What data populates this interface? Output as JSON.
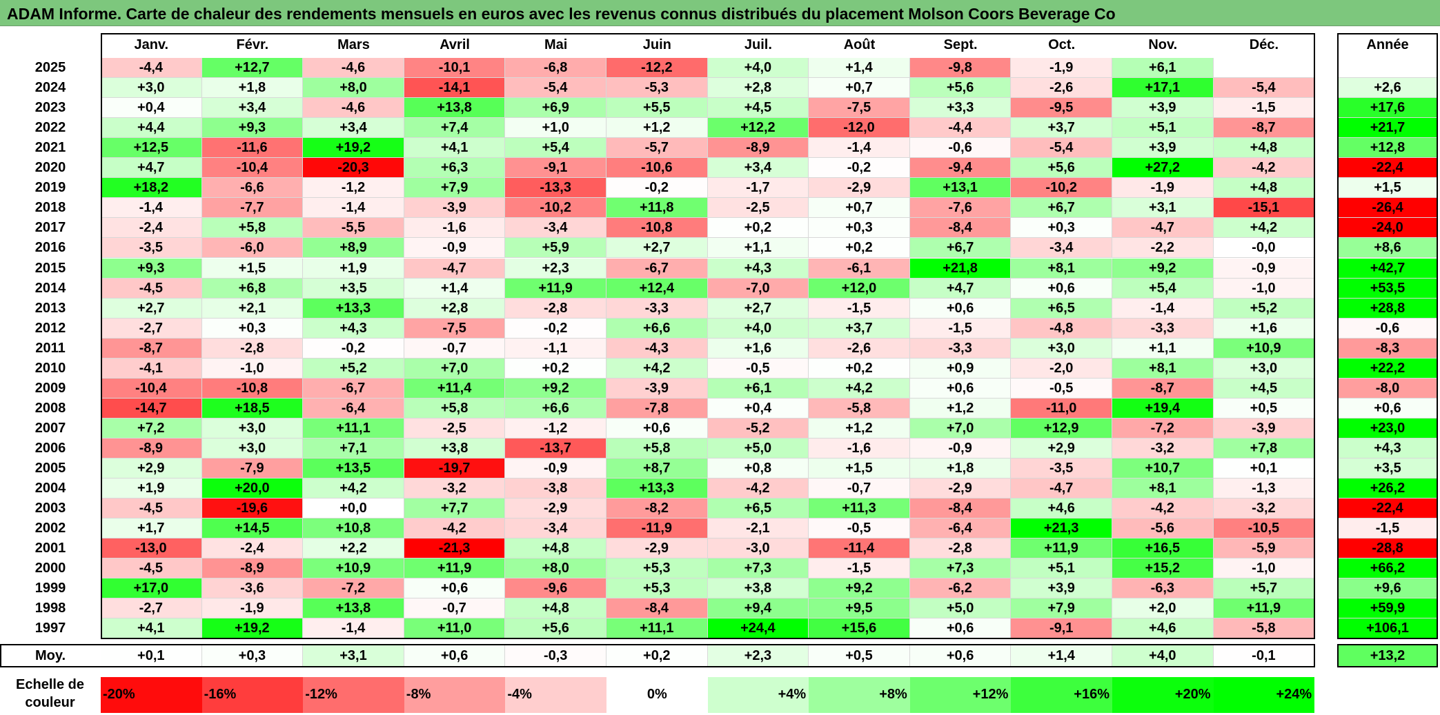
{
  "title": "ADAM Informe. Carte de chaleur des rendements mensuels en euros avec les revenus connus distribués du placement Molson Coors Beverage Co",
  "colors": {
    "title_bg": "#7dc77d",
    "negative_max": "#ff0000",
    "positive_max": "#00ff00",
    "neutral": "#ffffff"
  },
  "chart_data": {
    "type": "heatmap",
    "title": "ADAM Informe. Carte de chaleur des rendements mensuels en euros avec les revenus connus distribués du placement Molson Coors Beverage Co",
    "columns": [
      "Janv.",
      "Févr.",
      "Mars",
      "Avril",
      "Mai",
      "Juin",
      "Juil.",
      "Août",
      "Sept.",
      "Oct.",
      "Nov.",
      "Déc."
    ],
    "year_column_label": "Année",
    "rows": [
      {
        "label": "2025",
        "values": [
          "-4,4",
          "+12,7",
          "-4,6",
          "-10,1",
          "-6,8",
          "-12,2",
          "+4,0",
          "+1,4",
          "-9,8",
          "-1,9",
          "+6,1",
          ""
        ],
        "year": ""
      },
      {
        "label": "2024",
        "values": [
          "+3,0",
          "+1,8",
          "+8,0",
          "-14,1",
          "-5,4",
          "-5,3",
          "+2,8",
          "+0,7",
          "+5,6",
          "-2,6",
          "+17,1",
          "-5,4"
        ],
        "year": "+2,6"
      },
      {
        "label": "2023",
        "values": [
          "+0,4",
          "+3,4",
          "-4,6",
          "+13,8",
          "+6,9",
          "+5,5",
          "+4,5",
          "-7,5",
          "+3,3",
          "-9,5",
          "+3,9",
          "-1,5"
        ],
        "year": "+17,6"
      },
      {
        "label": "2022",
        "values": [
          "+4,4",
          "+9,3",
          "+3,4",
          "+7,4",
          "+1,0",
          "+1,2",
          "+12,2",
          "-12,0",
          "-4,4",
          "+3,7",
          "+5,1",
          "-8,7"
        ],
        "year": "+21,7"
      },
      {
        "label": "2021",
        "values": [
          "+12,5",
          "-11,6",
          "+19,2",
          "+4,1",
          "+5,4",
          "-5,7",
          "-8,9",
          "-1,4",
          "-0,6",
          "-5,4",
          "+3,9",
          "+4,8"
        ],
        "year": "+12,8"
      },
      {
        "label": "2020",
        "values": [
          "+4,7",
          "-10,4",
          "-20,3",
          "+6,3",
          "-9,1",
          "-10,6",
          "+3,4",
          "-0,2",
          "-9,4",
          "+5,6",
          "+27,2",
          "-4,2"
        ],
        "year": "-22,4"
      },
      {
        "label": "2019",
        "values": [
          "+18,2",
          "-6,6",
          "-1,2",
          "+7,9",
          "-13,3",
          "-0,2",
          "-1,7",
          "-2,9",
          "+13,1",
          "-10,2",
          "-1,9",
          "+4,8"
        ],
        "year": "+1,5"
      },
      {
        "label": "2018",
        "values": [
          "-1,4",
          "-7,7",
          "-1,4",
          "-3,9",
          "-10,2",
          "+11,8",
          "-2,5",
          "+0,7",
          "-7,6",
          "+6,7",
          "+3,1",
          "-15,1"
        ],
        "year": "-26,4"
      },
      {
        "label": "2017",
        "values": [
          "-2,4",
          "+5,8",
          "-5,5",
          "-1,6",
          "-3,4",
          "-10,8",
          "+0,2",
          "+0,3",
          "-8,4",
          "+0,3",
          "-4,7",
          "+4,2"
        ],
        "year": "-24,0"
      },
      {
        "label": "2016",
        "values": [
          "-3,5",
          "-6,0",
          "+8,9",
          "-0,9",
          "+5,9",
          "+2,7",
          "+1,1",
          "+0,2",
          "+6,7",
          "-3,4",
          "-2,2",
          "-0,0"
        ],
        "year": "+8,6"
      },
      {
        "label": "2015",
        "values": [
          "+9,3",
          "+1,5",
          "+1,9",
          "-4,7",
          "+2,3",
          "-6,7",
          "+4,3",
          "-6,1",
          "+21,8",
          "+8,1",
          "+9,2",
          "-0,9"
        ],
        "year": "+42,7"
      },
      {
        "label": "2014",
        "values": [
          "-4,5",
          "+6,8",
          "+3,5",
          "+1,4",
          "+11,9",
          "+12,4",
          "-7,0",
          "+12,0",
          "+4,7",
          "+0,6",
          "+5,4",
          "-1,0"
        ],
        "year": "+53,5"
      },
      {
        "label": "2013",
        "values": [
          "+2,7",
          "+2,1",
          "+13,3",
          "+2,8",
          "-2,8",
          "-3,3",
          "+2,7",
          "-1,5",
          "+0,6",
          "+6,5",
          "-1,4",
          "+5,2"
        ],
        "year": "+28,8"
      },
      {
        "label": "2012",
        "values": [
          "-2,7",
          "+0,3",
          "+4,3",
          "-7,5",
          "-0,2",
          "+6,6",
          "+4,0",
          "+3,7",
          "-1,5",
          "-4,8",
          "-3,3",
          "+1,6"
        ],
        "year": "-0,6"
      },
      {
        "label": "2011",
        "values": [
          "-8,7",
          "-2,8",
          "-0,2",
          "-0,7",
          "-1,1",
          "-4,3",
          "+1,6",
          "-2,6",
          "-3,3",
          "+3,0",
          "+1,1",
          "+10,9"
        ],
        "year": "-8,3"
      },
      {
        "label": "2010",
        "values": [
          "-4,1",
          "-1,0",
          "+5,2",
          "+7,0",
          "+0,2",
          "+4,2",
          "-0,5",
          "+0,2",
          "+0,9",
          "-2,0",
          "+8,1",
          "+3,0"
        ],
        "year": "+22,2"
      },
      {
        "label": "2009",
        "values": [
          "-10,4",
          "-10,8",
          "-6,7",
          "+11,4",
          "+9,2",
          "-3,9",
          "+6,1",
          "+4,2",
          "+0,6",
          "-0,5",
          "-8,7",
          "+4,5"
        ],
        "year": "-8,0"
      },
      {
        "label": "2008",
        "values": [
          "-14,7",
          "+18,5",
          "-6,4",
          "+5,8",
          "+6,6",
          "-7,8",
          "+0,4",
          "-5,8",
          "+1,2",
          "-11,0",
          "+19,4",
          "+0,5"
        ],
        "year": "+0,6"
      },
      {
        "label": "2007",
        "values": [
          "+7,2",
          "+3,0",
          "+11,1",
          "-2,5",
          "-1,2",
          "+0,6",
          "-5,2",
          "+1,2",
          "+7,0",
          "+12,9",
          "-7,2",
          "-3,9"
        ],
        "year": "+23,0"
      },
      {
        "label": "2006",
        "values": [
          "-8,9",
          "+3,0",
          "+7,1",
          "+3,8",
          "-13,7",
          "+5,8",
          "+5,0",
          "-1,6",
          "-0,9",
          "+2,9",
          "-3,2",
          "+7,8"
        ],
        "year": "+4,3"
      },
      {
        "label": "2005",
        "values": [
          "+2,9",
          "-7,9",
          "+13,5",
          "-19,7",
          "-0,9",
          "+8,7",
          "+0,8",
          "+1,5",
          "+1,8",
          "-3,5",
          "+10,7",
          "+0,1"
        ],
        "year": "+3,5"
      },
      {
        "label": "2004",
        "values": [
          "+1,9",
          "+20,0",
          "+4,2",
          "-3,2",
          "-3,8",
          "+13,3",
          "-4,2",
          "-0,7",
          "-2,9",
          "-4,7",
          "+8,1",
          "-1,3"
        ],
        "year": "+26,2"
      },
      {
        "label": "2003",
        "values": [
          "-4,5",
          "-19,6",
          "+0,0",
          "+7,7",
          "-2,9",
          "-8,2",
          "+6,5",
          "+11,3",
          "-8,4",
          "+4,6",
          "-4,2",
          "-3,2"
        ],
        "year": "-22,4"
      },
      {
        "label": "2002",
        "values": [
          "+1,7",
          "+14,5",
          "+10,8",
          "-4,2",
          "-3,4",
          "-11,9",
          "-2,1",
          "-0,5",
          "-6,4",
          "+21,3",
          "-5,6",
          "-10,5"
        ],
        "year": "-1,5"
      },
      {
        "label": "2001",
        "values": [
          "-13,0",
          "-2,4",
          "+2,2",
          "-21,3",
          "+4,8",
          "-2,9",
          "-3,0",
          "-11,4",
          "-2,8",
          "+11,9",
          "+16,5",
          "-5,9"
        ],
        "year": "-28,8"
      },
      {
        "label": "2000",
        "values": [
          "-4,5",
          "-8,9",
          "+10,9",
          "+11,9",
          "+8,0",
          "+5,3",
          "+7,3",
          "-1,5",
          "+7,3",
          "+5,1",
          "+15,2",
          "-1,0"
        ],
        "year": "+66,2"
      },
      {
        "label": "1999",
        "values": [
          "+17,0",
          "-3,6",
          "-7,2",
          "+0,6",
          "-9,6",
          "+5,3",
          "+3,8",
          "+9,2",
          "-6,2",
          "+3,9",
          "-6,3",
          "+5,7"
        ],
        "year": "+9,6"
      },
      {
        "label": "1998",
        "values": [
          "-2,7",
          "-1,9",
          "+13,8",
          "-0,7",
          "+4,8",
          "-8,4",
          "+9,4",
          "+9,5",
          "+5,0",
          "+7,9",
          "+2,0",
          "+11,9"
        ],
        "year": "+59,9"
      },
      {
        "label": "1997",
        "values": [
          "+4,1",
          "+19,2",
          "-1,4",
          "+11,0",
          "+5,6",
          "+11,1",
          "+24,4",
          "+15,6",
          "+0,6",
          "-9,1",
          "+4,6",
          "-5,8"
        ],
        "year": "+106,1"
      }
    ],
    "average": {
      "label": "Moy.",
      "values": [
        "+0,1",
        "+0,3",
        "+3,1",
        "+0,6",
        "-0,3",
        "+0,2",
        "+2,3",
        "+0,5",
        "+0,6",
        "+1,4",
        "+4,0",
        "-0,1"
      ],
      "year": "+13,2"
    },
    "scale": {
      "label": "Echelle de couleur",
      "steps": [
        "-20%",
        "-16%",
        "-12%",
        "-8%",
        "-4%",
        "0%",
        "+4%",
        "+8%",
        "+12%",
        "+16%",
        "+20%",
        "+24%"
      ],
      "step_values": [
        -20,
        -16,
        -12,
        -8,
        -4,
        0,
        4,
        8,
        12,
        16,
        20,
        24
      ]
    },
    "color_range": [
      -21,
      21
    ]
  }
}
